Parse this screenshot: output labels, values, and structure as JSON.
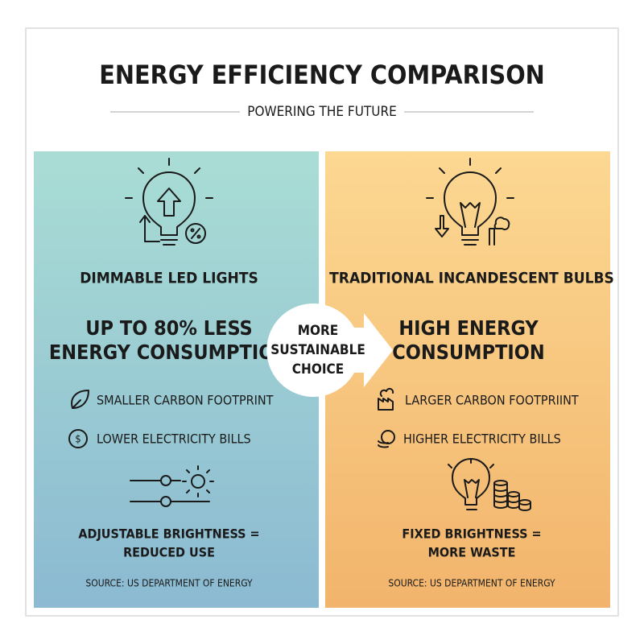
{
  "header": {
    "title": "ENERGY EFFICIENCY COMPARISON",
    "subtitle": "POWERING THE FUTURE"
  },
  "left": {
    "heading": "DIMMABLE LED LIGHTS",
    "headline": [
      "UP TO 80% LESS",
      "ENERGY CONSUMPTION"
    ],
    "bullets": [
      "SMALLER CARBON FOOTPRINT",
      "LOWER ELECTRICITY BILLS"
    ],
    "caption": [
      "ADJUSTABLE BRIGHTNESS =",
      "REDUCED USE"
    ],
    "source": "SOURCE: US DEPARTMENT OF ENERGY"
  },
  "badge": [
    "MORE",
    "SUSTAINABLE",
    "CHOICE"
  ],
  "right": {
    "heading": "TRADITIONAL INCANDESCENT BULBS",
    "headline": [
      "HIGH ENERGY",
      "CONSUMPTION"
    ],
    "bullets": [
      "LARGER CARBON FOOTPRIINT",
      "HIGHER ELECTRICITY BILLS"
    ],
    "caption": [
      "FIXED BRIGHTNESS =",
      "MORE WASTE"
    ],
    "source": "SOURCE: US DEPARTMENT OF ENERGY"
  }
}
